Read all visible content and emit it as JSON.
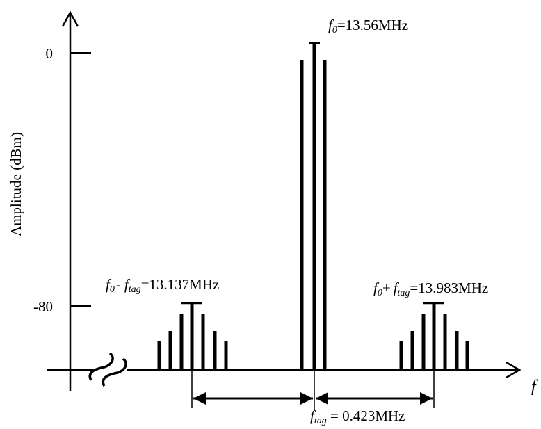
{
  "y_axis": {
    "label": "Amplitude (dBm)",
    "ticks": [
      {
        "label": "0",
        "value": 0
      },
      {
        "label": "-80",
        "value": -80
      }
    ]
  },
  "x_axis": {
    "label": "f"
  },
  "carrier": {
    "name": "f",
    "sub": "0",
    "value_text": "=13.56MHz",
    "frequency_mhz": 13.56,
    "level_dbm": 0
  },
  "lower_sideband": {
    "f0": "f",
    "f0_sub": "0",
    "op": "-",
    "ftag": "f",
    "ftag_sub": "tag",
    "value_text": "=13.137MHz",
    "frequency_mhz": 13.137,
    "level_dbm": -80
  },
  "upper_sideband": {
    "f0": "f",
    "f0_sub": "0",
    "op": "+",
    "ftag": "f",
    "ftag_sub": "tag",
    "value_text": "=13.983MHz",
    "frequency_mhz": 13.983,
    "level_dbm": -80
  },
  "spacing": {
    "f": "f",
    "sub": "tag",
    "value_text": " = 0.423MHz",
    "value_mhz": 0.423
  },
  "colors": {
    "ink": "#000000",
    "background": "#ffffff"
  }
}
